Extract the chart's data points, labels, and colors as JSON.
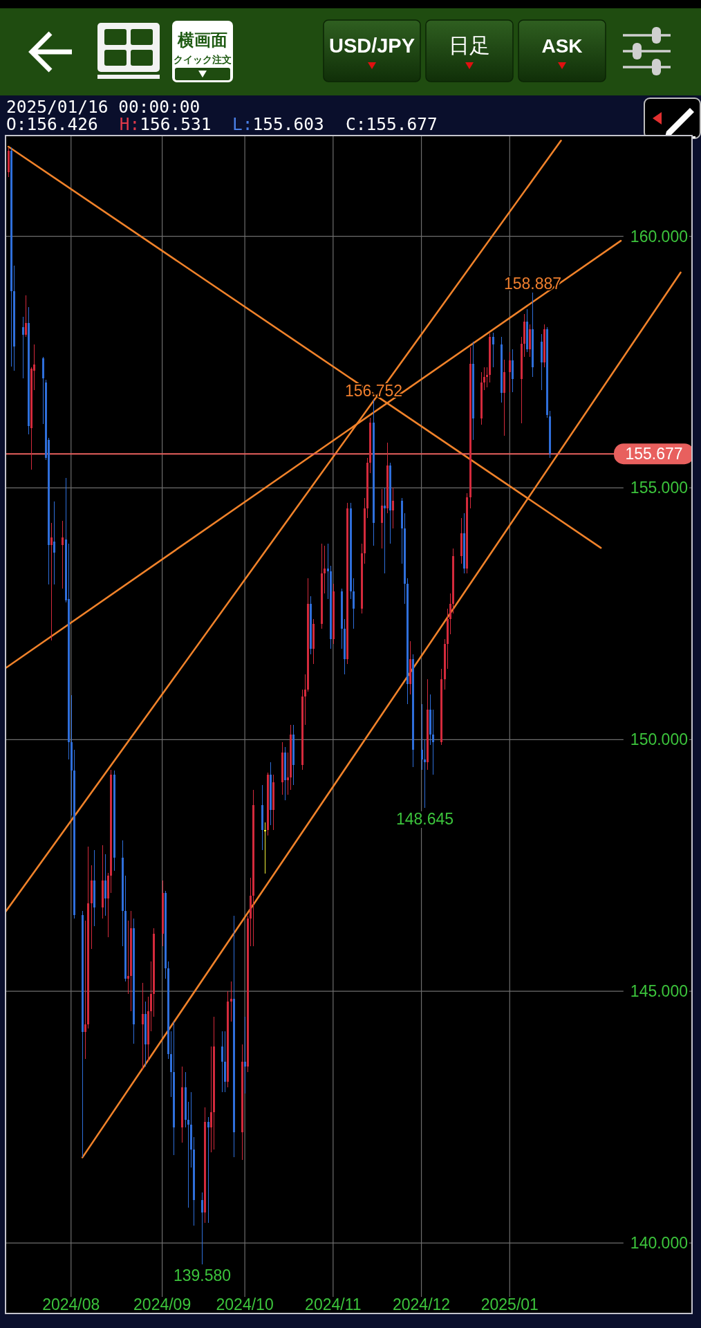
{
  "chart_data": {
    "type": "candlestick",
    "title": "USD/JPY",
    "subtitle": "日足",
    "x": [
      "2024-07-10",
      "2024-07-11",
      "2024-07-12",
      "2024-07-15",
      "2024-07-16",
      "2024-07-17",
      "2024-07-18",
      "2024-07-19",
      "2024-07-22",
      "2024-07-23",
      "2024-07-24",
      "2024-07-25",
      "2024-07-26",
      "2024-07-29",
      "2024-07-30",
      "2024-07-31",
      "2024-08-01",
      "2024-08-02",
      "2024-08-05",
      "2024-08-06",
      "2024-08-07",
      "2024-08-08",
      "2024-08-09",
      "2024-08-12",
      "2024-08-13",
      "2024-08-14",
      "2024-08-15",
      "2024-08-16",
      "2024-08-19",
      "2024-08-20",
      "2024-08-21",
      "2024-08-22",
      "2024-08-23",
      "2024-08-26",
      "2024-08-27",
      "2024-08-28",
      "2024-08-29",
      "2024-08-30",
      "2024-09-02",
      "2024-09-03",
      "2024-09-04",
      "2024-09-05",
      "2024-09-06",
      "2024-09-09",
      "2024-09-10",
      "2024-09-11",
      "2024-09-12",
      "2024-09-13",
      "2024-09-16",
      "2024-09-17",
      "2024-09-18",
      "2024-09-19",
      "2024-09-20",
      "2024-09-23",
      "2024-09-24",
      "2024-09-25",
      "2024-09-26",
      "2024-09-27",
      "2024-09-30",
      "2024-10-01",
      "2024-10-02",
      "2024-10-03",
      "2024-10-04",
      "2024-10-07",
      "2024-10-08",
      "2024-10-09",
      "2024-10-10",
      "2024-10-11",
      "2024-10-14",
      "2024-10-15",
      "2024-10-16",
      "2024-10-17",
      "2024-10-18",
      "2024-10-21",
      "2024-10-22",
      "2024-10-23",
      "2024-10-24",
      "2024-10-25",
      "2024-10-28",
      "2024-10-29",
      "2024-10-30",
      "2024-10-31",
      "2024-11-01",
      "2024-11-04",
      "2024-11-05",
      "2024-11-06",
      "2024-11-07",
      "2024-11-08",
      "2024-11-11",
      "2024-11-12",
      "2024-11-13",
      "2024-11-14",
      "2024-11-15",
      "2024-11-18",
      "2024-11-19",
      "2024-11-20",
      "2024-11-21",
      "2024-11-22",
      "2024-11-25",
      "2024-11-26",
      "2024-11-27",
      "2024-11-28",
      "2024-11-29",
      "2024-12-02",
      "2024-12-03",
      "2024-12-04",
      "2024-12-05",
      "2024-12-06",
      "2024-12-09",
      "2024-12-10",
      "2024-12-11",
      "2024-12-12",
      "2024-12-13",
      "2024-12-16",
      "2024-12-17",
      "2024-12-18",
      "2024-12-19",
      "2024-12-20",
      "2024-12-23",
      "2024-12-24",
      "2024-12-25",
      "2024-12-26",
      "2024-12-27",
      "2024-12-30",
      "2024-12-31",
      "2025-01-02",
      "2025-01-03",
      "2025-01-06",
      "2025-01-07",
      "2025-01-08",
      "2025-01-09",
      "2025-01-10",
      "2025-01-13",
      "2025-01-14",
      "2025-01-15",
      "2025-01-16"
    ],
    "ohlc": [
      [
        161.27,
        161.75,
        161.18,
        161.7
      ],
      [
        161.7,
        161.76,
        157.41,
        158.91
      ],
      [
        158.91,
        159.42,
        157.33,
        157.81
      ],
      [
        158.2,
        158.4,
        157.18,
        158.04
      ],
      [
        158.04,
        158.83,
        158.0,
        158.28
      ],
      [
        158.28,
        158.59,
        156.07,
        156.23
      ],
      [
        156.19,
        157.4,
        155.36,
        157.37
      ],
      [
        157.33,
        157.85,
        156.94,
        157.45
      ],
      [
        157.57,
        157.6,
        156.27,
        157.18
      ],
      [
        157.1,
        157.15,
        155.55,
        155.6
      ],
      [
        155.95,
        156.0,
        153.08,
        153.86
      ],
      [
        153.86,
        154.3,
        151.97,
        154.02
      ],
      [
        153.94,
        154.73,
        153.08,
        153.71
      ],
      [
        153.86,
        154.34,
        153.0,
        154.02
      ],
      [
        153.98,
        155.2,
        152.72,
        152.76
      ],
      [
        152.8,
        153.9,
        149.6,
        149.95
      ],
      [
        149.95,
        150.88,
        148.5,
        149.38
      ],
      [
        149.38,
        149.8,
        146.45,
        146.52
      ],
      [
        146.52,
        146.6,
        141.7,
        144.19
      ],
      [
        144.19,
        146.4,
        143.66,
        144.34
      ],
      [
        144.34,
        147.88,
        144.26,
        146.75
      ],
      [
        146.75,
        147.5,
        145.84,
        147.2
      ],
      [
        147.2,
        147.8,
        146.3,
        146.67
      ],
      [
        146.67,
        147.9,
        146.45,
        147.2
      ],
      [
        147.2,
        147.73,
        146.5,
        146.85
      ],
      [
        146.85,
        147.35,
        146.07,
        147.3
      ],
      [
        147.3,
        149.4,
        146.95,
        149.3
      ],
      [
        149.3,
        149.38,
        147.4,
        147.65
      ],
      [
        147.65,
        148.0,
        145.9,
        146.6
      ],
      [
        146.6,
        147.3,
        145.2,
        145.25
      ],
      [
        145.25,
        146.4,
        144.95,
        145.3
      ],
      [
        145.3,
        146.6,
        144.6,
        146.25
      ],
      [
        146.25,
        146.45,
        143.96,
        144.34
      ],
      [
        144.34,
        145.17,
        143.45,
        144.55
      ],
      [
        144.55,
        144.8,
        143.51,
        143.95
      ],
      [
        143.95,
        144.9,
        143.6,
        144.6
      ],
      [
        144.6,
        145.6,
        144.2,
        144.95
      ],
      [
        144.95,
        146.25,
        144.5,
        146.15
      ],
      [
        146.15,
        147.2,
        145.9,
        146.95
      ],
      [
        146.95,
        147.0,
        145.25,
        145.45
      ],
      [
        145.45,
        145.6,
        143.65,
        143.75
      ],
      [
        143.75,
        144.2,
        142.9,
        143.4
      ],
      [
        143.4,
        144.4,
        141.75,
        142.3
      ],
      [
        142.3,
        143.5,
        142.0,
        143.1
      ],
      [
        143.1,
        143.4,
        142.3,
        142.45
      ],
      [
        142.45,
        142.8,
        140.7,
        142.35
      ],
      [
        142.35,
        143.0,
        141.5,
        141.85
      ],
      [
        141.85,
        142.1,
        140.35,
        140.85
      ],
      [
        140.85,
        141.0,
        139.58,
        140.6
      ],
      [
        140.6,
        142.7,
        140.4,
        142.4
      ],
      [
        142.4,
        142.5,
        140.4,
        142.3
      ],
      [
        142.3,
        143.9,
        141.8,
        142.6
      ],
      [
        142.6,
        144.5,
        141.85,
        143.9
      ],
      [
        143.9,
        144.2,
        143.0,
        143.6
      ],
      [
        143.6,
        144.2,
        143.0,
        143.2
      ],
      [
        143.2,
        145.0,
        143.1,
        144.8
      ],
      [
        144.8,
        145.2,
        144.4,
        144.85
      ],
      [
        144.85,
        146.5,
        141.7,
        142.2
      ],
      [
        142.2,
        143.95,
        141.65,
        143.6
      ],
      [
        143.6,
        144.5,
        142.97,
        143.5
      ],
      [
        143.5,
        146.5,
        143.4,
        146.45
      ],
      [
        146.45,
        147.25,
        145.9,
        146.9
      ],
      [
        146.9,
        149.0,
        145.9,
        148.7
      ],
      [
        148.7,
        149.1,
        147.8,
        148.2
      ],
      [
        148.2,
        148.35,
        147.34,
        148.2
      ],
      [
        148.2,
        149.35,
        148.1,
        149.3
      ],
      [
        149.3,
        149.55,
        148.3,
        148.6
      ],
      [
        148.6,
        149.3,
        148.2,
        149.15
      ],
      [
        149.15,
        149.95,
        148.9,
        149.75
      ],
      [
        149.75,
        149.85,
        148.8,
        149.2
      ],
      [
        149.2,
        149.75,
        148.9,
        149.25
      ],
      [
        149.25,
        150.3,
        149.0,
        150.1
      ],
      [
        150.1,
        150.3,
        149.1,
        149.5
      ],
      [
        149.5,
        151.0,
        149.4,
        150.85
      ],
      [
        150.85,
        151.3,
        150.3,
        151.0
      ],
      [
        151.0,
        153.2,
        150.95,
        152.7
      ],
      [
        152.7,
        152.85,
        151.7,
        151.8
      ],
      [
        151.8,
        152.4,
        151.5,
        152.3
      ],
      [
        152.3,
        153.9,
        152.2,
        153.3
      ],
      [
        153.3,
        153.85,
        152.9,
        153.4
      ],
      [
        153.4,
        153.9,
        152.8,
        153.35
      ],
      [
        153.35,
        153.45,
        151.8,
        152.0
      ],
      [
        152.0,
        153.1,
        151.9,
        152.95
      ],
      [
        152.95,
        153.0,
        151.8,
        152.2
      ],
      [
        152.2,
        152.4,
        151.3,
        151.6
      ],
      [
        151.6,
        154.7,
        151.5,
        154.6
      ],
      [
        154.6,
        154.7,
        152.8,
        152.95
      ],
      [
        152.95,
        153.2,
        152.2,
        152.6
      ],
      [
        152.6,
        153.9,
        152.5,
        153.7
      ],
      [
        153.7,
        154.8,
        153.5,
        154.6
      ],
      [
        154.6,
        155.6,
        154.4,
        155.5
      ],
      [
        155.5,
        156.4,
        155.3,
        156.3
      ],
      [
        156.3,
        156.752,
        153.85,
        154.3
      ],
      [
        154.3,
        154.98,
        153.8,
        154.65
      ],
      [
        154.65,
        155.0,
        153.3,
        154.6
      ],
      [
        154.6,
        155.9,
        154.5,
        155.45
      ],
      [
        155.45,
        155.5,
        153.9,
        154.55
      ],
      [
        154.55,
        155.0,
        154.2,
        154.75
      ],
      [
        154.75,
        154.8,
        153.5,
        154.2
      ],
      [
        154.2,
        154.5,
        152.7,
        153.1
      ],
      [
        153.1,
        153.2,
        150.7,
        151.1
      ],
      [
        151.1,
        151.95,
        150.9,
        151.6
      ],
      [
        151.6,
        151.7,
        149.45,
        149.8
      ],
      [
        149.8,
        150.7,
        149.4,
        149.6
      ],
      [
        149.6,
        150.0,
        148.645,
        149.55
      ],
      [
        149.55,
        151.2,
        149.4,
        150.6
      ],
      [
        150.6,
        150.9,
        149.9,
        150.1
      ],
      [
        150.1,
        150.6,
        149.3,
        149.95
      ],
      [
        149.95,
        151.4,
        149.9,
        151.2
      ],
      [
        151.2,
        152.0,
        151.0,
        151.9
      ],
      [
        151.9,
        152.6,
        151.4,
        152.4
      ],
      [
        152.4,
        152.9,
        152.1,
        152.7
      ],
      [
        152.7,
        153.8,
        152.5,
        153.65
      ],
      [
        153.65,
        154.4,
        153.5,
        154.1
      ],
      [
        154.1,
        154.5,
        153.3,
        153.4
      ],
      [
        153.4,
        154.9,
        153.3,
        154.81
      ],
      [
        154.81,
        157.8,
        154.6,
        157.46
      ],
      [
        157.46,
        157.9,
        155.95,
        156.38
      ],
      [
        156.38,
        157.3,
        156.25,
        157.1
      ],
      [
        157.1,
        157.4,
        156.95,
        157.2
      ],
      [
        157.2,
        157.4,
        157.0,
        157.25
      ],
      [
        157.25,
        158.07,
        157.1,
        158.0
      ],
      [
        158.0,
        158.08,
        157.4,
        157.85
      ],
      [
        157.85,
        158.0,
        156.7,
        156.89
      ],
      [
        156.89,
        157.55,
        156.03,
        157.3
      ],
      [
        157.3,
        157.7,
        156.9,
        157.53
      ],
      [
        157.53,
        157.75,
        156.9,
        157.17
      ],
      [
        157.17,
        158.0,
        156.28,
        157.86
      ],
      [
        157.86,
        158.45,
        157.6,
        158.3
      ],
      [
        158.3,
        158.55,
        157.7,
        157.75
      ],
      [
        157.75,
        158.25,
        157.6,
        158.15
      ],
      [
        158.15,
        158.887,
        157.2,
        157.4
      ],
      [
        157.9,
        158.05,
        156.95,
        157.5
      ],
      [
        157.5,
        158.25,
        157.4,
        158.15
      ],
      [
        158.15,
        158.2,
        156.4,
        156.45
      ],
      [
        156.426,
        156.531,
        155.603,
        155.677
      ]
    ],
    "colors": [
      "#d42a3c",
      "#2f6fdb",
      "#2f6fdb",
      "#2f6fdb",
      "#d42a3c",
      "#2f6fdb",
      "#d42a3c",
      "#d42a3c",
      "#2f6fdb",
      "#2f6fdb",
      "#2f6fdb",
      "#d42a3c",
      "#2f6fdb",
      "#d42a3c",
      "#2f6fdb",
      "#2f6fdb",
      "#2f6fdb",
      "#2f6fdb",
      "#2f6fdb",
      "#d42a3c",
      "#d42a3c",
      "#d42a3c",
      "#2f6fdb",
      "#d42a3c",
      "#2f6fdb",
      "#d42a3c",
      "#d42a3c",
      "#2f6fdb",
      "#2f6fdb",
      "#2f6fdb",
      "#d42a3c",
      "#d42a3c",
      "#2f6fdb",
      "#d42a3c",
      "#2f6fdb",
      "#d42a3c",
      "#d42a3c",
      "#d42a3c",
      "#d42a3c",
      "#2f6fdb",
      "#2f6fdb",
      "#2f6fdb",
      "#2f6fdb",
      "#d42a3c",
      "#2f6fdb",
      "#2f6fdb",
      "#2f6fdb",
      "#2f6fdb",
      "#2f6fdb",
      "#d42a3c",
      "#2f6fdb",
      "#d42a3c",
      "#d42a3c",
      "#2f6fdb",
      "#2f6fdb",
      "#d42a3c",
      "#d42a3c",
      "#2f6fdb",
      "#d42a3c",
      "#2f6fdb",
      "#d42a3c",
      "#d42a3c",
      "#d42a3c",
      "#2f6fdb",
      "#f5f53a",
      "#d42a3c",
      "#2f6fdb",
      "#d42a3c",
      "#d42a3c",
      "#2f6fdb",
      "#d42a3c",
      "#d42a3c",
      "#2f6fdb",
      "#d42a3c",
      "#d42a3c",
      "#d42a3c",
      "#2f6fdb",
      "#d42a3c",
      "#d42a3c",
      "#d42a3c",
      "#2f6fdb",
      "#2f6fdb",
      "#d42a3c",
      "#2f6fdb",
      "#2f6fdb",
      "#d42a3c",
      "#2f6fdb",
      "#2f6fdb",
      "#d42a3c",
      "#d42a3c",
      "#d42a3c",
      "#d42a3c",
      "#2f6fdb",
      "#d42a3c",
      "#2f6fdb",
      "#d42a3c",
      "#2f6fdb",
      "#d42a3c",
      "#2f6fdb",
      "#2f6fdb",
      "#2f6fdb",
      "#d42a3c",
      "#2f6fdb",
      "#2f6fdb",
      "#2f6fdb",
      "#d42a3c",
      "#2f6fdb",
      "#2f6fdb",
      "#d42a3c",
      "#d42a3c",
      "#d42a3c",
      "#d42a3c",
      "#d42a3c",
      "#d42a3c",
      "#2f6fdb",
      "#d42a3c",
      "#d42a3c",
      "#2f6fdb",
      "#d42a3c",
      "#d42a3c",
      "#d42a3c",
      "#d42a3c",
      "#2f6fdb",
      "#2f6fdb",
      "#d42a3c",
      "#d42a3c",
      "#2f6fdb",
      "#d42a3c",
      "#d42a3c",
      "#2f6fdb",
      "#d42a3c",
      "#2f6fdb",
      "#2f6fdb",
      "#d42a3c",
      "#2f6fdb",
      "#2f6fdb"
    ],
    "series": [
      {
        "type": "line",
        "color": "#f0822a",
        "x": [
          "2024-07-10",
          "2025-02-03"
        ],
        "values": [
          161.78,
          153.81
        ]
      },
      {
        "type": "line",
        "color": "#f0822a",
        "x": [
          "2024-07-09",
          "2025-02-10"
        ],
        "values": [
          151.42,
          159.91
        ]
      },
      {
        "type": "line",
        "color": "#f0822a",
        "x": [
          "2024-07-09",
          "2025-01-20"
        ],
        "values": [
          146.58,
          161.9
        ]
      },
      {
        "type": "line",
        "color": "#f0822a",
        "x": [
          "2024-08-05",
          "2025-03-03"
        ],
        "values": [
          141.7,
          159.28
        ]
      }
    ],
    "xlim": [
      "2024-07-09",
      "2025-03-07"
    ],
    "xticks": [
      {
        "value": "2024-08-01",
        "label": "2024/08"
      },
      {
        "value": "2024-09-02",
        "label": "2024/09"
      },
      {
        "value": "2024-10-01",
        "label": "2024/10"
      },
      {
        "value": "2024-11-01",
        "label": "2024/11"
      },
      {
        "value": "2024-12-02",
        "label": "2024/12"
      },
      {
        "value": "2025-01-02",
        "label": "2025/01"
      }
    ],
    "ylim": [
      138.6,
      162
    ],
    "yticks": [
      {
        "value": 140,
        "label": "140.000"
      },
      {
        "value": 145,
        "label": "145.000"
      },
      {
        "value": 150,
        "label": "150.000"
      },
      {
        "value": 155,
        "label": "155.000"
      },
      {
        "value": 160,
        "label": "160.000"
      }
    ],
    "grid": true,
    "ref_lines": [
      {
        "axis": "y",
        "value": 155.677,
        "label": "155.677",
        "color": "#e8605e"
      }
    ],
    "annotations": [
      "横画面",
      "クイック注文",
      "ASK",
      "2025/01/16 00:00:00",
      "O:156.426",
      "H:156.531",
      "L:155.603",
      "C:155.677",
      {
        "text": "158.887",
        "x": "2025-01-10",
        "y": 158.887
      },
      {
        "text": "156.752",
        "x": "2024-11-15",
        "y": 156.752
      },
      {
        "text": "148.645",
        "x": "2024-12-03",
        "y": 148.645
      },
      {
        "text": "139.580",
        "x": "2024-09-16",
        "y": 139.58
      }
    ]
  }
}
